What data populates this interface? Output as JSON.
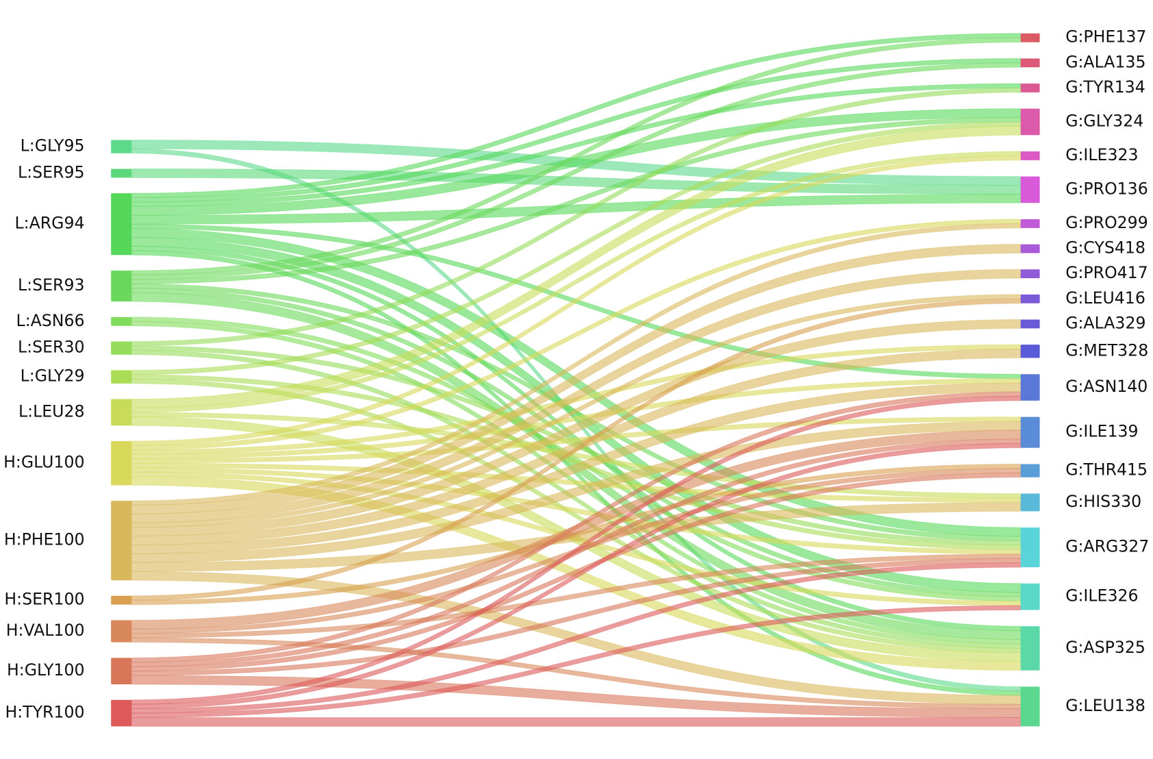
{
  "chart_data": {
    "type": "sankey",
    "sources": [
      {
        "name": "L:GLY95",
        "color": "#5cd98a"
      },
      {
        "name": "L:SER95",
        "color": "#5ad87a"
      },
      {
        "name": "L:ARG94",
        "color": "#55d85a"
      },
      {
        "name": "L:SER93",
        "color": "#6ad85a"
      },
      {
        "name": "L:ASN66",
        "color": "#80dc5a"
      },
      {
        "name": "L:SER30",
        "color": "#95dc5a"
      },
      {
        "name": "L:GLY29",
        "color": "#aadc55"
      },
      {
        "name": "L:LEU28",
        "color": "#c8dc5a"
      },
      {
        "name": "H:GLU100",
        "color": "#d8d85a"
      },
      {
        "name": "H:PHE100",
        "color": "#d8b85a"
      },
      {
        "name": "H:SER100",
        "color": "#d8a050"
      },
      {
        "name": "H:VAL100",
        "color": "#d8885a"
      },
      {
        "name": "H:GLY100",
        "color": "#d8765a"
      },
      {
        "name": "H:TYR100",
        "color": "#dc5a5a"
      }
    ],
    "targets": [
      {
        "name": "G:PHE137",
        "color": "#dc5a64"
      },
      {
        "name": "G:ALA135",
        "color": "#dc5a78"
      },
      {
        "name": "G:TYR134",
        "color": "#dc5a94"
      },
      {
        "name": "G:GLY324",
        "color": "#dc5aaa"
      },
      {
        "name": "G:ILE323",
        "color": "#dc5ac4"
      },
      {
        "name": "G:PRO136",
        "color": "#d85ad8"
      },
      {
        "name": "G:PRO299",
        "color": "#c05ad8"
      },
      {
        "name": "G:CYS418",
        "color": "#a85ad8"
      },
      {
        "name": "G:PRO417",
        "color": "#905ad8"
      },
      {
        "name": "G:LEU416",
        "color": "#7a5ad8"
      },
      {
        "name": "G:ALA329",
        "color": "#6a5ad8"
      },
      {
        "name": "G:MET328",
        "color": "#5a5ad8"
      },
      {
        "name": "G:ASN140",
        "color": "#5a78d8"
      },
      {
        "name": "G:ILE139",
        "color": "#5a8cd8"
      },
      {
        "name": "G:THR415",
        "color": "#5a9ed8"
      },
      {
        "name": "G:HIS330",
        "color": "#5ab8d8"
      },
      {
        "name": "G:ARG327",
        "color": "#5ad4d8"
      },
      {
        "name": "G:ILE326",
        "color": "#5ad8c8"
      },
      {
        "name": "G:ASP325",
        "color": "#5ad8a8"
      },
      {
        "name": "G:LEU138",
        "color": "#5ad890"
      }
    ],
    "links": [
      {
        "source": "L:GLY95",
        "target": "G:PRO136",
        "value": 2
      },
      {
        "source": "L:GLY95",
        "target": "G:LEU138",
        "value": 1
      },
      {
        "source": "L:SER95",
        "target": "G:PRO136",
        "value": 2
      },
      {
        "source": "L:ARG94",
        "target": "G:PHE137",
        "value": 1
      },
      {
        "source": "L:ARG94",
        "target": "G:ALA135",
        "value": 1
      },
      {
        "source": "L:ARG94",
        "target": "G:TYR134",
        "value": 1
      },
      {
        "source": "L:ARG94",
        "target": "G:GLY324",
        "value": 2
      },
      {
        "source": "L:ARG94",
        "target": "G:PRO136",
        "value": 2
      },
      {
        "source": "L:ARG94",
        "target": "G:ASN140",
        "value": 1
      },
      {
        "source": "L:ARG94",
        "target": "G:ARG327",
        "value": 2
      },
      {
        "source": "L:ARG94",
        "target": "G:ILE326",
        "value": 2
      },
      {
        "source": "L:ARG94",
        "target": "G:ASP325",
        "value": 1
      },
      {
        "source": "L:ARG94",
        "target": "G:LEU138",
        "value": 1
      },
      {
        "source": "L:SER93",
        "target": "G:PHE137",
        "value": 1
      },
      {
        "source": "L:SER93",
        "target": "G:ALA135",
        "value": 1
      },
      {
        "source": "L:SER93",
        "target": "G:GLY324",
        "value": 1
      },
      {
        "source": "L:SER93",
        "target": "G:ARG327",
        "value": 1
      },
      {
        "source": "L:SER93",
        "target": "G:ILE326",
        "value": 1
      },
      {
        "source": "L:SER93",
        "target": "G:ASP325",
        "value": 2
      },
      {
        "source": "L:ASN66",
        "target": "G:ILE326",
        "value": 1
      },
      {
        "source": "L:ASN66",
        "target": "G:ASP325",
        "value": 1
      },
      {
        "source": "L:SER30",
        "target": "G:TYR134",
        "value": 1
      },
      {
        "source": "L:SER30",
        "target": "G:ARG327",
        "value": 1
      },
      {
        "source": "L:SER30",
        "target": "G:ASP325",
        "value": 1
      },
      {
        "source": "L:GLY29",
        "target": "G:GLY324",
        "value": 1
      },
      {
        "source": "L:GLY29",
        "target": "G:ARG327",
        "value": 1
      },
      {
        "source": "L:GLY29",
        "target": "G:ASP325",
        "value": 1
      },
      {
        "source": "L:LEU28",
        "target": "G:GLY324",
        "value": 2
      },
      {
        "source": "L:LEU28",
        "target": "G:ILE323",
        "value": 1
      },
      {
        "source": "L:LEU28",
        "target": "G:HIS330",
        "value": 1
      },
      {
        "source": "L:LEU28",
        "target": "G:ASP325",
        "value": 2
      },
      {
        "source": "H:GLU100",
        "target": "G:ILE323",
        "value": 1
      },
      {
        "source": "H:GLU100",
        "target": "G:PRO299",
        "value": 1
      },
      {
        "source": "H:GLU100",
        "target": "G:MET328",
        "value": 1
      },
      {
        "source": "H:GLU100",
        "target": "G:ASN140",
        "value": 1
      },
      {
        "source": "H:GLU100",
        "target": "G:ILE139",
        "value": 1
      },
      {
        "source": "H:GLU100",
        "target": "G:HIS330",
        "value": 1
      },
      {
        "source": "H:GLU100",
        "target": "G:ARG327",
        "value": 1
      },
      {
        "source": "H:GLU100",
        "target": "G:ILE326",
        "value": 1
      },
      {
        "source": "H:GLU100",
        "target": "G:ASP325",
        "value": 2
      },
      {
        "source": "H:PHE100",
        "target": "G:PRO299",
        "value": 1
      },
      {
        "source": "H:PHE100",
        "target": "G:CYS418",
        "value": 2
      },
      {
        "source": "H:PHE100",
        "target": "G:PRO417",
        "value": 2
      },
      {
        "source": "H:PHE100",
        "target": "G:LEU416",
        "value": 1
      },
      {
        "source": "H:PHE100",
        "target": "G:ALA329",
        "value": 2
      },
      {
        "source": "H:PHE100",
        "target": "G:MET328",
        "value": 2
      },
      {
        "source": "H:PHE100",
        "target": "G:ASN140",
        "value": 2
      },
      {
        "source": "H:PHE100",
        "target": "G:ILE139",
        "value": 2
      },
      {
        "source": "H:PHE100",
        "target": "G:HIS330",
        "value": 2
      },
      {
        "source": "H:PHE100",
        "target": "G:LEU138",
        "value": 2
      },
      {
        "source": "H:SER100",
        "target": "G:LEU416",
        "value": 1
      },
      {
        "source": "H:SER100",
        "target": "G:THR415",
        "value": 1
      },
      {
        "source": "H:VAL100",
        "target": "G:ILE139",
        "value": 2
      },
      {
        "source": "H:VAL100",
        "target": "G:THR415",
        "value": 1
      },
      {
        "source": "H:VAL100",
        "target": "G:ARG327",
        "value": 1
      },
      {
        "source": "H:VAL100",
        "target": "G:LEU138",
        "value": 1
      },
      {
        "source": "H:GLY100",
        "target": "G:ASN140",
        "value": 1
      },
      {
        "source": "H:GLY100",
        "target": "G:ILE139",
        "value": 1
      },
      {
        "source": "H:GLY100",
        "target": "G:THR415",
        "value": 1
      },
      {
        "source": "H:GLY100",
        "target": "G:ARG327",
        "value": 1
      },
      {
        "source": "H:GLY100",
        "target": "G:LEU138",
        "value": 2
      },
      {
        "source": "H:TYR100",
        "target": "G:ASN140",
        "value": 1
      },
      {
        "source": "H:TYR100",
        "target": "G:ILE139",
        "value": 1
      },
      {
        "source": "H:TYR100",
        "target": "G:ARG327",
        "value": 1
      },
      {
        "source": "H:TYR100",
        "target": "G:ILE326",
        "value": 1
      },
      {
        "source": "H:TYR100",
        "target": "G:LEU138",
        "value": 2
      }
    ]
  }
}
